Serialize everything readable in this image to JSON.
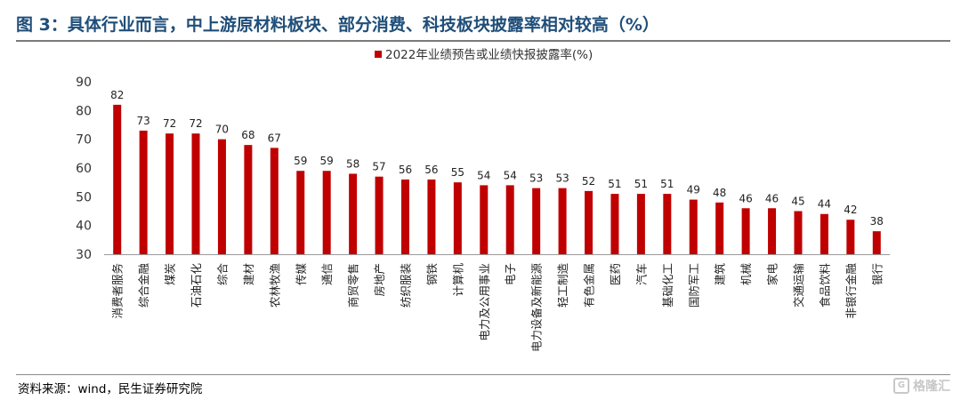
{
  "header": {
    "title": "图 3：具体行业而言，中上游原材料板块、部分消费、科技板块披露率相对较高（%）"
  },
  "footer": {
    "source": "资料来源：wind，民生证券研究院",
    "watermark": "格隆汇"
  },
  "chart_data": {
    "type": "bar",
    "legend": [
      "2022年业绩预告或业绩快报披露率(%)"
    ],
    "categories": [
      "消费者服务",
      "综合金融",
      "煤炭",
      "石油石化",
      "综合",
      "建材",
      "农林牧渔",
      "传媒",
      "通信",
      "商贸零售",
      "房地产",
      "纺织服装",
      "钢铁",
      "计算机",
      "电力及公用事业",
      "电子",
      "电力设备及新能源",
      "轻工制造",
      "有色金属",
      "医药",
      "汽车",
      "基础化工",
      "国防军工",
      "建筑",
      "机械",
      "家电",
      "交通运输",
      "食品饮料",
      "非银行金融",
      "银行"
    ],
    "series": [
      {
        "name": "2022年业绩预告或业绩快报披露率(%)",
        "values": [
          82,
          73,
          72,
          72,
          70,
          68,
          67,
          59,
          59,
          58,
          57,
          56,
          56,
          55,
          54,
          54,
          53,
          53,
          52,
          51,
          51,
          51,
          49,
          48,
          46,
          46,
          45,
          44,
          42,
          38
        ],
        "color": "#c00000"
      }
    ],
    "ylim": [
      30,
      90
    ],
    "yticks": [
      30,
      40,
      50,
      60,
      70,
      80,
      90
    ],
    "xlabel": "",
    "ylabel": "",
    "grid": false,
    "legend_position": "top-center"
  }
}
